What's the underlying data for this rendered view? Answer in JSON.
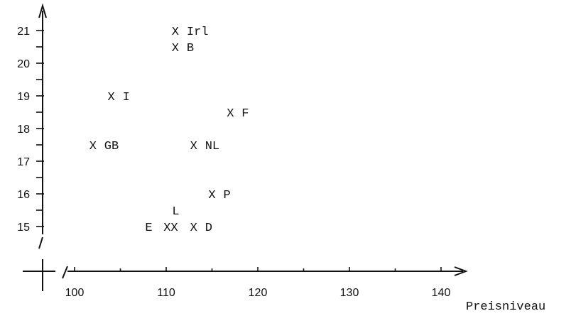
{
  "chart_data": {
    "type": "scatter",
    "title": "",
    "xlabel": "Preisniveau",
    "ylabel": "",
    "xlim": [
      100,
      140
    ],
    "ylim": [
      15,
      21
    ],
    "x_ticks": [
      100,
      110,
      120,
      130,
      140
    ],
    "y_ticks": [
      15,
      16,
      17,
      18,
      19,
      20,
      21
    ],
    "axis_break": true,
    "grid": false,
    "marker": "X",
    "points": [
      {
        "x": 111,
        "y": 21.0,
        "label": "Irl"
      },
      {
        "x": 111,
        "y": 20.5,
        "label": "B"
      },
      {
        "x": 104,
        "y": 19.0,
        "label": "I"
      },
      {
        "x": 117,
        "y": 18.5,
        "label": "F"
      },
      {
        "x": 102,
        "y": 17.5,
        "label": "GB"
      },
      {
        "x": 113,
        "y": 17.5,
        "label": "NL"
      },
      {
        "x": 115,
        "y": 16.0,
        "label": "P"
      },
      {
        "x": 113,
        "y": 15.0,
        "label": "D"
      }
    ],
    "cluster": {
      "marker_text": "XX",
      "x": 110.5,
      "y": 15.0,
      "labels": [
        "E",
        "L"
      ]
    }
  }
}
